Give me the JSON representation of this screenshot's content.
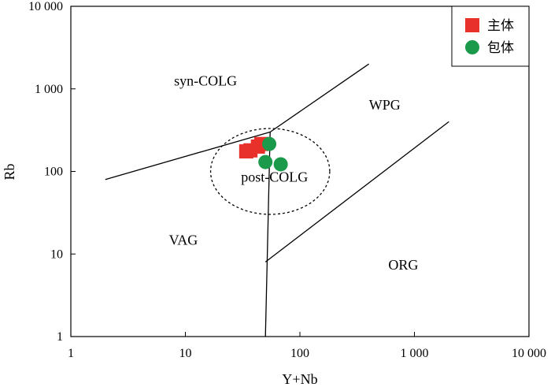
{
  "chart_data": {
    "type": "scatter",
    "title": "",
    "xlabel": "Y+Nb",
    "ylabel": "Rb",
    "x_scale": "log",
    "y_scale": "log",
    "xlim": [
      1,
      10000
    ],
    "ylim": [
      1,
      10000
    ],
    "x_ticks": [
      1,
      10,
      100,
      1000,
      10000
    ],
    "x_tick_labels": [
      "1",
      "10",
      "100",
      "1 000",
      "10 000"
    ],
    "y_ticks": [
      1,
      10,
      100,
      1000,
      10000
    ],
    "y_tick_labels": [
      "1",
      "10",
      "100",
      "1 000",
      "10 000"
    ],
    "grid": false,
    "legend_position": "top-right",
    "series": [
      {
        "name": "主体",
        "marker": "square",
        "color": "#e8312a",
        "points": [
          {
            "x": 34,
            "y": 175
          },
          {
            "x": 37,
            "y": 180
          },
          {
            "x": 43,
            "y": 200
          },
          {
            "x": 46,
            "y": 215
          }
        ]
      },
      {
        "name": "包体",
        "marker": "circle",
        "color": "#1a9a4a",
        "points": [
          {
            "x": 54,
            "y": 215
          },
          {
            "x": 50,
            "y": 130
          },
          {
            "x": 68,
            "y": 122
          }
        ]
      }
    ],
    "boundaries": [
      {
        "name": "vag-syn-boundary",
        "points": [
          [
            2,
            80
          ],
          [
            55,
            300
          ]
        ]
      },
      {
        "name": "syn-wpg-boundary",
        "points": [
          [
            55,
            300
          ],
          [
            400,
            2000
          ]
        ]
      },
      {
        "name": "vag-wpg-boundary",
        "points": [
          [
            55,
            300
          ],
          [
            50,
            1
          ]
        ]
      },
      {
        "name": "wpg-org-boundary",
        "points": [
          [
            50,
            8
          ],
          [
            2000,
            400
          ]
        ]
      }
    ],
    "post_colg_circle": {
      "center_x": 55,
      "center_y": 100,
      "radius_decades": 0.52
    },
    "regions": [
      {
        "label": "syn-COLG",
        "x": 15,
        "y": 1100
      },
      {
        "label": "WPG",
        "x": 550,
        "y": 560
      },
      {
        "label": "post-COLG",
        "x": 60,
        "y": 75
      },
      {
        "label": "VAG",
        "x": 9.6,
        "y": 13
      },
      {
        "label": "ORG",
        "x": 800,
        "y": 6.5
      }
    ]
  }
}
